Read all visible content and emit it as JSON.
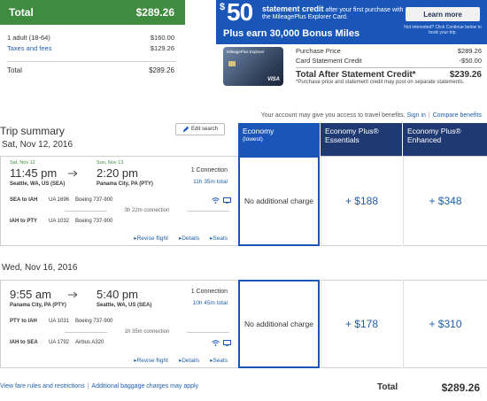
{
  "price_summary": {
    "header_label": "Total",
    "header_value": "$289.26",
    "rows": [
      {
        "label": "1 adult (18-64)",
        "value": "$160.00"
      },
      {
        "label": "Taxes and fees",
        "value": "$129.26"
      }
    ],
    "total_label": "Total",
    "total_value": "$289.26"
  },
  "ad": {
    "dollar": "$",
    "amount": "50",
    "headline_bold": "statement credit",
    "headline_rest": " after your first purchase with the MileagePlus Explorer Card.",
    "bonus": "Plus earn 30,000 Bonus Miles",
    "learn_more": "Learn more",
    "not_interested": "Not interested? Click Continue below to book your trip.",
    "card_name": "MileagePlus Explorer",
    "card_network": "VISA",
    "purchase_label": "Purchase Price",
    "purchase_value": "$289.26",
    "credit_label": "Card Statement Credit",
    "credit_value": "-$50.00",
    "after_label": "Total After Statement Credit*",
    "after_value": "$239.26",
    "note": "*Purchase price and statement credit may post on separate statements."
  },
  "account": {
    "text": "Your account may give you access to travel benefits.",
    "sign_in": "Sign in",
    "compare": "Compare benefits"
  },
  "trip": {
    "title": "Trip summary",
    "edit": "Edit search"
  },
  "cabins": [
    {
      "name": "Economy",
      "sub": "(lowest)"
    },
    {
      "name": "Economy Plus®",
      "sub": "Essentials"
    },
    {
      "name": "Economy Plus®",
      "sub": "Enhanced"
    }
  ],
  "flight1": {
    "date": "Sat, Nov 12, 2016",
    "dep_date": "Sat, Nov 12",
    "arr_date": "Sun, Nov 13",
    "dep_time": "11:45 pm",
    "arr_time": "2:20 pm",
    "dep_place": "Seattle, WA, US (SEA)",
    "arr_place": "Panama City, PA (PTY)",
    "connections": "1 Connection",
    "duration": "11h 35m total",
    "seg1": {
      "route": "SEA to IAH",
      "flight": "UA 1696",
      "aircraft": "Boeing 737-900"
    },
    "layover": "3h 22m connection",
    "seg2": {
      "route": "IAH to PTY",
      "flight": "UA 1032",
      "aircraft": "Boeing 737-900"
    },
    "revise": "Revise flight",
    "details": "Details",
    "seats": "Seats",
    "fares": [
      "No additional charge",
      "+ $188",
      "+ $348"
    ]
  },
  "flight2": {
    "date": "Wed, Nov 16, 2016",
    "dep_time": "9:55 am",
    "arr_time": "5:40 pm",
    "dep_place": "Panama City, PA (PTY)",
    "arr_place": "Seattle, WA, US (SEA)",
    "connections": "1 Connection",
    "duration": "10h 45m total",
    "seg1": {
      "route": "PTY to IAH",
      "flight": "UA 1031",
      "aircraft": "Boeing 737-900"
    },
    "layover": "1h 35m connection",
    "seg2": {
      "route": "IAH to SEA",
      "flight": "UA 1792",
      "aircraft": "Airbus A320"
    },
    "revise": "Revise flight",
    "details": "Details",
    "seats": "Seats",
    "fares": [
      "No additional charge",
      "+ $178",
      "+ $310"
    ]
  },
  "footer": {
    "fare_rules": "View fare rules and restrictions",
    "baggage": "Additional baggage charges may apply",
    "total_label": "Total",
    "total_value": "$289.26"
  }
}
